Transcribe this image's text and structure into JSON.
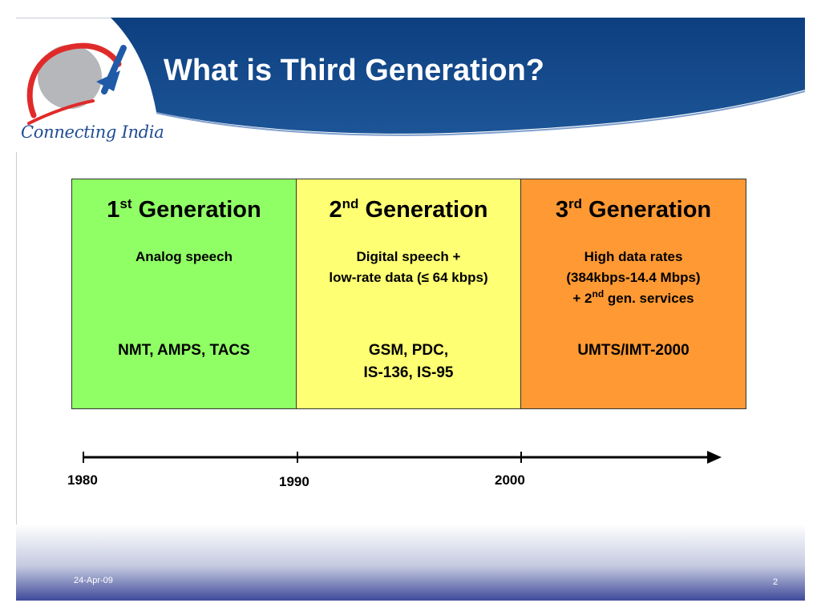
{
  "slide": {
    "title": "What is Third Generation?",
    "logo_text": "Connecting India"
  },
  "generations": [
    {
      "number": "1",
      "suffix": "st",
      "label": "Generation",
      "description": [
        "Analog speech"
      ],
      "systems": [
        "NMT, AMPS, TACS"
      ],
      "color": "#90ff66"
    },
    {
      "number": "2",
      "suffix": "nd",
      "label": "Generation",
      "description": [
        "Digital speech +",
        "low-rate data (≤ 64 kbps)"
      ],
      "systems": [
        "GSM, PDC,",
        "IS-136, IS-95"
      ],
      "color": "#ffff73"
    },
    {
      "number": "3",
      "suffix": "rd",
      "label": "Generation",
      "description_lines": {
        "line1": "High data rates",
        "line2": "(384kbps-14.4 Mbps)",
        "line3_prefix": "+ 2",
        "line3_sup": "nd",
        "line3_suffix": " gen. services"
      },
      "systems": [
        "UMTS/IMT-2000"
      ],
      "color": "#ff9933"
    }
  ],
  "timeline": {
    "years": [
      "1980",
      "1990",
      "2000"
    ]
  },
  "footer": {
    "date": "24-Apr-09",
    "page_number": "2"
  },
  "colors": {
    "header_blue": "#154a8a",
    "logo_red": "#e02a2a",
    "logo_blue": "#1f5aa8"
  }
}
